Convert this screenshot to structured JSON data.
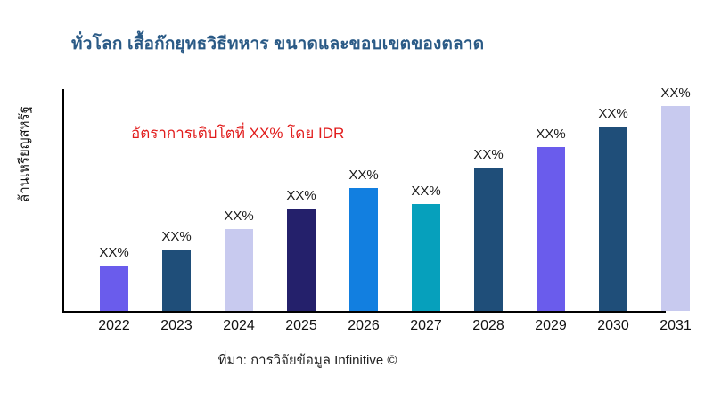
{
  "chart_data": {
    "type": "bar",
    "title": "ทั่วโลก เสื้อก๊กยุทธวิธีทหาร ขนาดและขอบเขตของตลาด",
    "ylabel": "ล้านเหรียญสหรัฐ",
    "xlabel": "",
    "annotation": "อัตราการเติบโตที่ XX% โดย IDR",
    "source": "ที่มา: การวิจัยข้อมูล Infinitive ©",
    "categories": [
      "2022",
      "2023",
      "2024",
      "2025",
      "2026",
      "2027",
      "2028",
      "2029",
      "2030",
      "2031"
    ],
    "bar_labels": [
      "XX%",
      "XX%",
      "XX%",
      "XX%",
      "XX%",
      "XX%",
      "XX%",
      "XX%",
      "XX%",
      "XX%"
    ],
    "values_relative_pct_of_max": [
      22,
      30,
      40,
      50,
      60,
      52,
      70,
      80,
      90,
      100
    ],
    "bar_colors": [
      "#6a5cec",
      "#1f4e79",
      "#c8caef",
      "#24206b",
      "#127fe0",
      "#06a0bc",
      "#1f4e79",
      "#6a5cec",
      "#1f4e79",
      "#c8caef"
    ],
    "grid": false,
    "legend": false,
    "colors": {
      "title": "#2a5a86",
      "annotation": "#e11c1c",
      "axis": "#000000",
      "text": "#111111"
    }
  }
}
